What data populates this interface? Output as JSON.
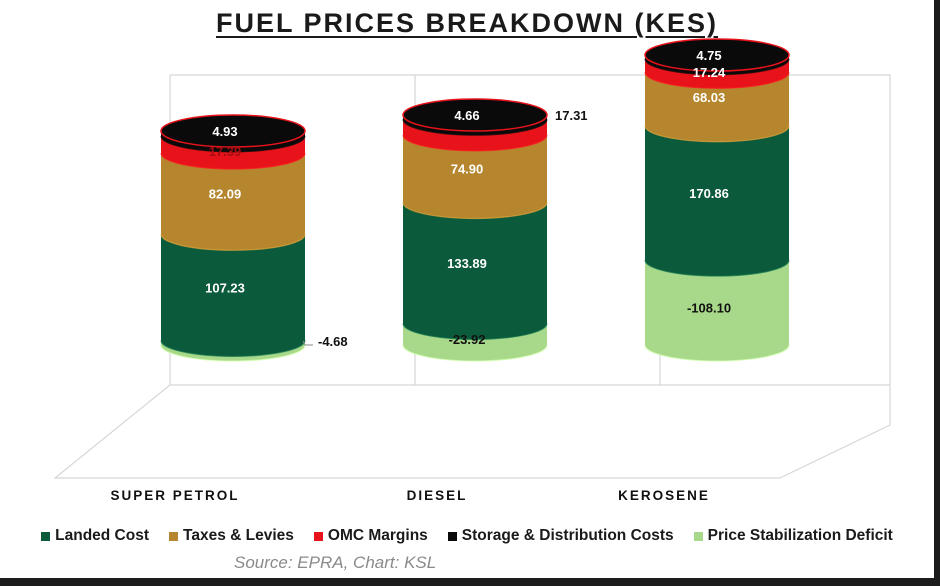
{
  "chart_data": {
    "type": "bar",
    "stacked": true,
    "title": "FUEL PRICES BREAKDOWN (KES)",
    "categories": [
      "SUPER PETROL",
      "DIESEL",
      "KEROSENE"
    ],
    "series": [
      {
        "name": "Landed Cost",
        "color": "#0b5a3c",
        "values": [
          107.23,
          133.89,
          170.86
        ],
        "labels": [
          "107.23",
          "133.89",
          "170.86"
        ]
      },
      {
        "name": "Taxes & Levies",
        "color": "#b6862e",
        "values": [
          82.09,
          74.9,
          68.03
        ],
        "labels": [
          "82.09",
          "74.90",
          "68.03"
        ]
      },
      {
        "name": "OMC Margins",
        "color": "#e8131a",
        "values": [
          17.39,
          17.31,
          17.24
        ],
        "labels": [
          "17.39",
          "17.31",
          "17.24"
        ]
      },
      {
        "name": "Storage & Distribution Costs",
        "color": "#0a0a0a",
        "values": [
          4.93,
          4.66,
          4.75
        ],
        "labels": [
          "4.93",
          "4.66",
          "4.75"
        ]
      },
      {
        "name": "Price Stabilization Deficit",
        "color": "#a8d98a",
        "values": [
          -4.68,
          -23.92,
          -108.1
        ],
        "labels": [
          "-4.68",
          "-23.92",
          "-108.10"
        ]
      }
    ],
    "legend_position": "bottom",
    "grid": false,
    "source": "Source: EPRA, Chart: KSL"
  }
}
